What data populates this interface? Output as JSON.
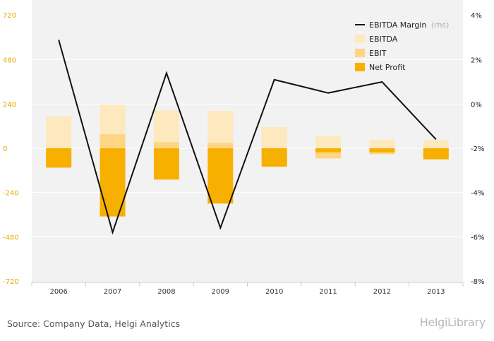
{
  "chart_data": {
    "type": "bar",
    "categories": [
      "2006",
      "2007",
      "2008",
      "2009",
      "2010",
      "2011",
      "2012",
      "2013"
    ],
    "series": [
      {
        "name": "EBITDA",
        "kind": "bar",
        "axis": "left",
        "color": "#fde9bd",
        "values": [
          173,
          236,
          205,
          203,
          115,
          68,
          47,
          45
        ]
      },
      {
        "name": "EBIT",
        "kind": "bar",
        "axis": "left",
        "color": "#fdd583",
        "values": [
          -95,
          76,
          33,
          29,
          -95,
          -55,
          -32,
          -60
        ]
      },
      {
        "name": "Net Profit",
        "kind": "bar",
        "axis": "left",
        "color": "#f8b000",
        "values": [
          -105,
          -370,
          -170,
          -300,
          -100,
          -22,
          -22,
          -60
        ]
      },
      {
        "name": "EBITDA Margin",
        "name_suffix": "(rhs)",
        "kind": "line",
        "axis": "right",
        "color": "#111111",
        "values": [
          2.9,
          -5.8,
          1.4,
          -5.6,
          1.1,
          0.5,
          1.0,
          -1.6
        ]
      }
    ],
    "left_axis": {
      "min": -720,
      "max": 720,
      "ticks": [
        "720",
        "480",
        "240",
        "0",
        "-240",
        "-480",
        "-720"
      ]
    },
    "right_axis": {
      "min": -8,
      "max": 4,
      "ticks": [
        "4%",
        "2%",
        "0%",
        "-2%",
        "-4%",
        "-6%",
        "-8%"
      ]
    },
    "legend_position": "top-right",
    "grid": true
  },
  "footer": {
    "source": "Source: Company Data, Helgi Analytics",
    "logo_main": "Helgi",
    "logo_second": "Library"
  }
}
